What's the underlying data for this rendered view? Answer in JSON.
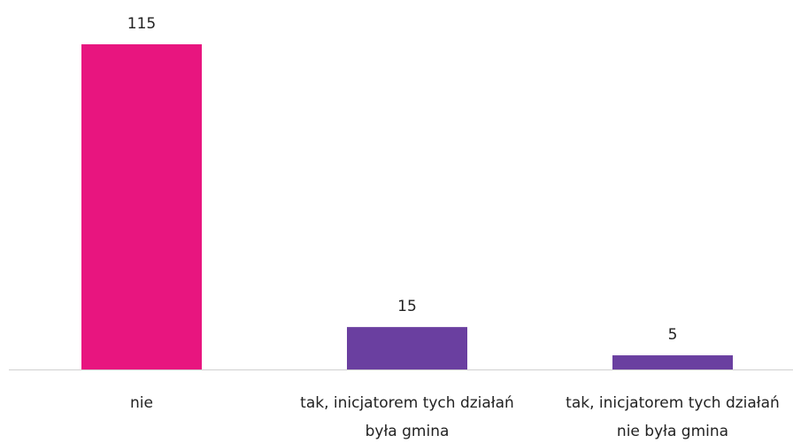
{
  "chart_data": {
    "type": "bar",
    "categories": [
      "nie",
      "tak, inicjatorem tych działań była gmina",
      "tak, inicjatorem tych działań nie była gmina"
    ],
    "values": [
      115,
      15,
      5
    ],
    "colors": [
      "#e8157f",
      "#6a3fa0",
      "#6a3fa0"
    ]
  }
}
